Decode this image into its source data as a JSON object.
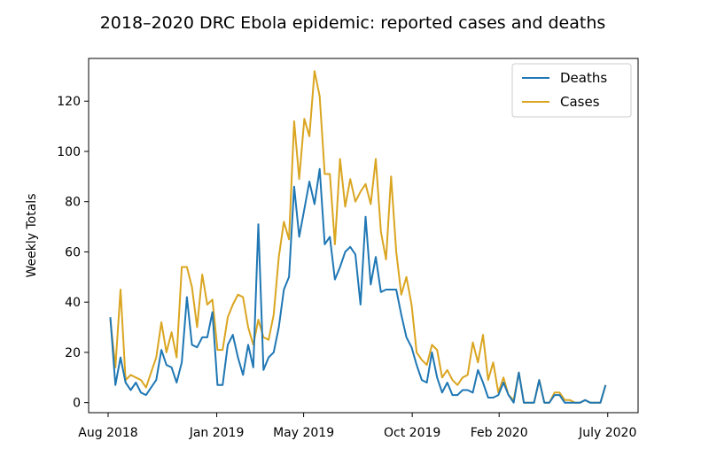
{
  "chart_data": {
    "type": "line",
    "title": "2018–2020 DRC Ebola epidemic: reported cases and deaths",
    "xlabel": "",
    "ylabel": "Weekly Totals",
    "x_range_months": [
      0,
      23.5
    ],
    "ylim": [
      -4,
      137
    ],
    "x_ticks": [
      {
        "label": "Aug 2018",
        "month": 0
      },
      {
        "label": "Jan 2019",
        "month": 5
      },
      {
        "label": "May 2019",
        "month": 9
      },
      {
        "label": "Oct 2019",
        "month": 14
      },
      {
        "label": "Feb 2020",
        "month": 18
      },
      {
        "label": "July 2020",
        "month": 23
      }
    ],
    "y_ticks": [
      0,
      20,
      40,
      60,
      80,
      100,
      120
    ],
    "grid": false,
    "legend_position": "top-right",
    "series": [
      {
        "name": "Deaths",
        "color": "#1f77b4",
        "values": [
          34,
          7,
          18,
          8,
          5,
          8,
          4,
          3,
          6,
          9,
          21,
          15,
          14,
          8,
          16,
          42,
          23,
          22,
          26,
          26,
          36,
          7,
          7,
          23,
          27,
          18,
          11,
          23,
          14,
          71,
          13,
          18,
          20,
          30,
          45,
          50,
          86,
          66,
          77,
          88,
          79,
          93,
          63,
          66,
          49,
          54,
          60,
          62,
          59,
          39,
          74,
          47,
          58,
          44,
          45,
          45,
          45,
          35,
          26,
          22,
          15,
          9,
          8,
          20,
          10,
          4,
          8,
          3,
          3,
          5,
          5,
          4,
          13,
          8,
          2,
          2,
          3,
          8,
          3,
          0,
          12,
          0,
          0,
          0,
          9,
          0,
          0,
          3,
          3,
          0,
          0,
          0,
          0,
          1,
          0,
          0,
          0,
          7
        ]
      },
      {
        "name": "Cases",
        "color": "#daa520",
        "values": [
          33,
          14,
          45,
          9,
          11,
          10,
          9,
          6,
          12,
          18,
          32,
          20,
          28,
          18,
          54,
          54,
          46,
          30,
          51,
          39,
          41,
          21,
          21,
          34,
          39,
          43,
          42,
          30,
          23,
          33,
          26,
          25,
          35,
          58,
          72,
          65,
          112,
          89,
          113,
          106,
          132,
          122,
          91,
          91,
          63,
          97,
          78,
          89,
          80,
          84,
          87,
          79,
          97,
          68,
          57,
          90,
          60,
          43,
          50,
          39,
          20,
          17,
          15,
          23,
          21,
          10,
          13,
          9,
          7,
          10,
          11,
          24,
          16,
          27,
          9,
          16,
          4,
          10,
          3,
          1,
          12,
          0,
          0,
          0,
          9,
          0,
          0,
          4,
          4,
          1,
          1,
          0,
          0,
          1,
          0,
          0,
          0,
          7
        ]
      }
    ]
  }
}
